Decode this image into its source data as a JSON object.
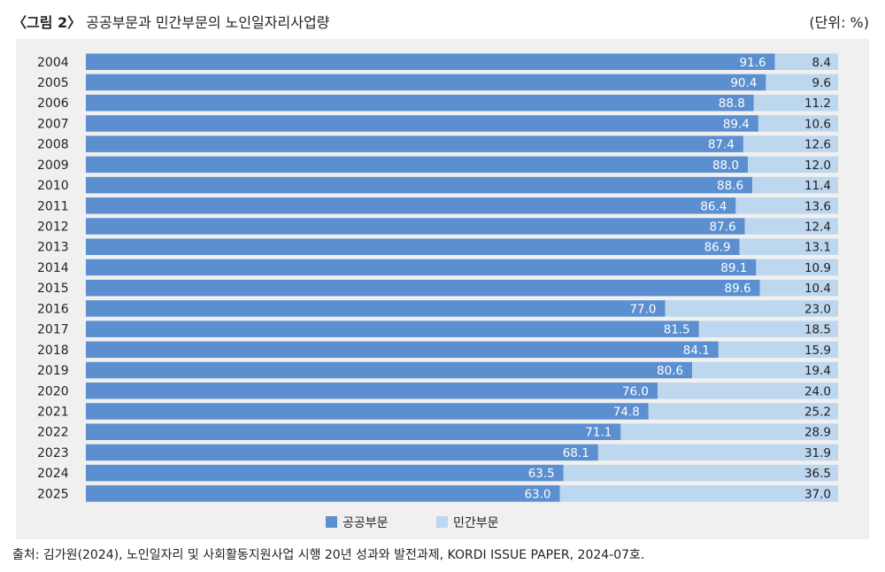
{
  "figure": {
    "label": "〈그림 2〉",
    "title": "공공부문과 민간부문의 노인일자리사업량",
    "unit": "(단위: %)",
    "source": "출처: 김가원(2024), 노인일자리 및 사회활동지원사업 시행 20년 성과와 발전과제, KORDI ISSUE PAPER, 2024-07호."
  },
  "colors": {
    "public": "#5b8fcf",
    "private": "#bdd7ee",
    "panel": "#f0f0f0"
  },
  "chart_data": {
    "type": "bar",
    "orientation": "horizontal",
    "stacked": true,
    "categories": [
      "2004",
      "2005",
      "2006",
      "2007",
      "2008",
      "2009",
      "2010",
      "2011",
      "2012",
      "2013",
      "2014",
      "2015",
      "2016",
      "2017",
      "2018",
      "2019",
      "2020",
      "2021",
      "2022",
      "2023",
      "2024",
      "2025"
    ],
    "series": [
      {
        "name": "공공부문",
        "values": [
          91.6,
          90.4,
          88.8,
          89.4,
          87.4,
          88.0,
          88.6,
          86.4,
          87.6,
          86.9,
          89.1,
          89.6,
          77.0,
          81.5,
          84.1,
          80.6,
          76.0,
          74.8,
          71.1,
          68.1,
          63.5,
          63.0
        ]
      },
      {
        "name": "민간부문",
        "values": [
          8.4,
          9.6,
          11.2,
          10.6,
          12.6,
          12.0,
          11.4,
          13.6,
          12.4,
          13.1,
          10.9,
          10.4,
          23.0,
          18.5,
          15.9,
          19.4,
          24.0,
          25.2,
          28.9,
          31.9,
          36.5,
          37.0
        ]
      }
    ],
    "xlim": [
      0,
      100
    ],
    "title": "",
    "xlabel": "",
    "ylabel": "",
    "legend": "bottom-center",
    "grid": false
  }
}
